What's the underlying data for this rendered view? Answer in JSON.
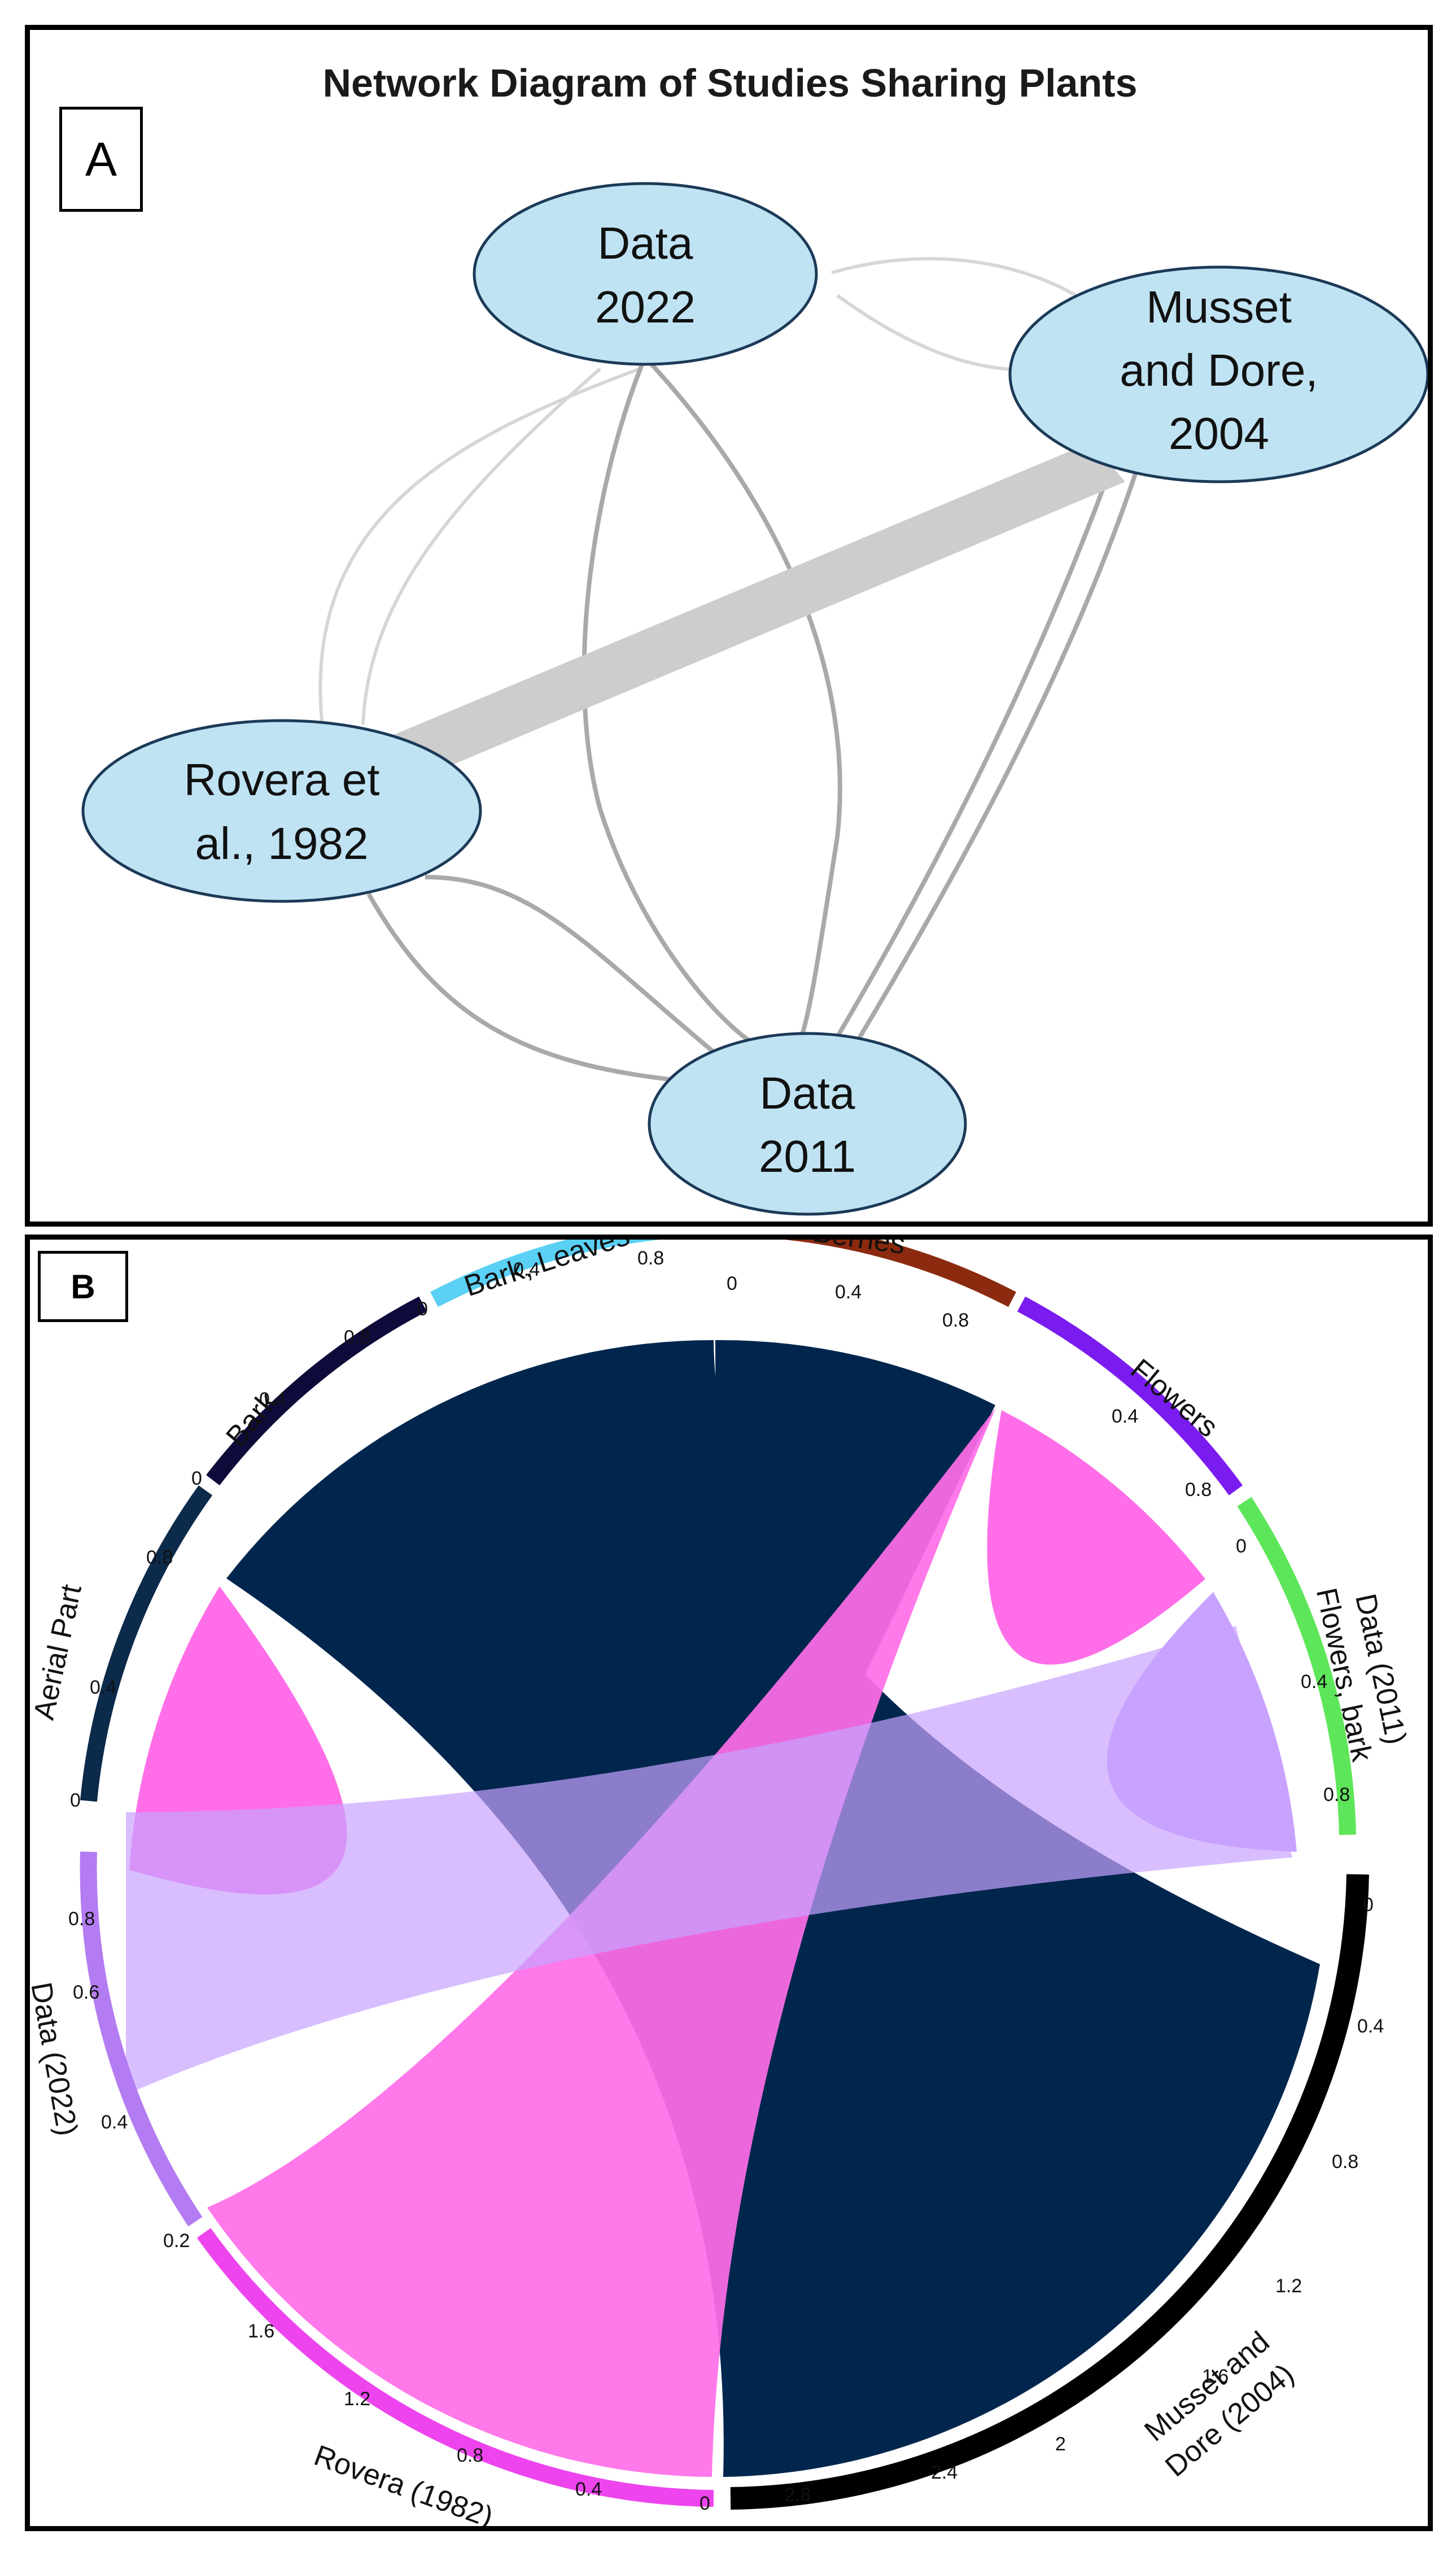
{
  "panel_a": {
    "letter": "A",
    "title": "Network Diagram of Studies Sharing Plants",
    "nodes": [
      {
        "id": "d2022",
        "lines": [
          "Data",
          "2022"
        ]
      },
      {
        "id": "musset",
        "lines": [
          "Musset",
          "and Dore,",
          "2004"
        ]
      },
      {
        "id": "rovera",
        "lines": [
          "Rovera et",
          "al., 1982"
        ]
      },
      {
        "id": "d2011",
        "lines": [
          "Data",
          "2011"
        ]
      }
    ],
    "edges": [
      {
        "from": "rovera",
        "to": "musset",
        "weight": "strong"
      },
      {
        "from": "d2022",
        "to": "musset",
        "weight": "weak"
      },
      {
        "from": "d2022",
        "to": "rovera",
        "weight": "weak"
      },
      {
        "from": "d2022",
        "to": "d2011",
        "weight": "medium"
      },
      {
        "from": "musset",
        "to": "d2011",
        "weight": "medium"
      },
      {
        "from": "rovera",
        "to": "d2011",
        "weight": "medium"
      }
    ]
  },
  "panel_b": {
    "letter": "B",
    "sectors": [
      {
        "label": "Berries",
        "color": "#8b2a0f"
      },
      {
        "label": "Flowers",
        "color": "#7a1cf0"
      },
      {
        "label": "Data (2011)\nFlowers, bark",
        "color": "#5ee65a"
      },
      {
        "label": "Musset and\nDore (2004)",
        "color": "#000000"
      },
      {
        "label": "Rovera (1982)",
        "color": "#ee44ee"
      },
      {
        "label": "Data (2022)",
        "color": "#b47cf2"
      },
      {
        "label": "Aerial Part",
        "color": "#0c2a4a"
      },
      {
        "label": "Bark",
        "color": "#0e0a3a"
      },
      {
        "label": "Bark, Leaves",
        "color": "#5ad0f5"
      }
    ],
    "chord_colors": {
      "musset": "#00264d",
      "rovera": "#ff6ee8",
      "data2022": "#c8a2ff"
    },
    "ticks": {
      "berries": [
        "0",
        "0.4",
        "0.8"
      ],
      "flowers": [
        "0.4",
        "0.8",
        "0"
      ],
      "data2011": [
        "0.4",
        "0.8"
      ],
      "musset": [
        "0",
        "0.4",
        "0.8",
        "1.2",
        "1.6",
        "2",
        "2.4",
        "2.8"
      ],
      "rovera": [
        "0",
        "0.4",
        "0.8",
        "1.2",
        "1.6"
      ],
      "data2022": [
        "0.2",
        "0.4",
        "0.6",
        "0.8"
      ],
      "aerial": [
        "0",
        "0.4",
        "0.8"
      ],
      "bark": [
        "0",
        "0.4",
        "0.8"
      ],
      "bark_leaves": [
        "0",
        "0.4",
        "0.8"
      ]
    }
  }
}
